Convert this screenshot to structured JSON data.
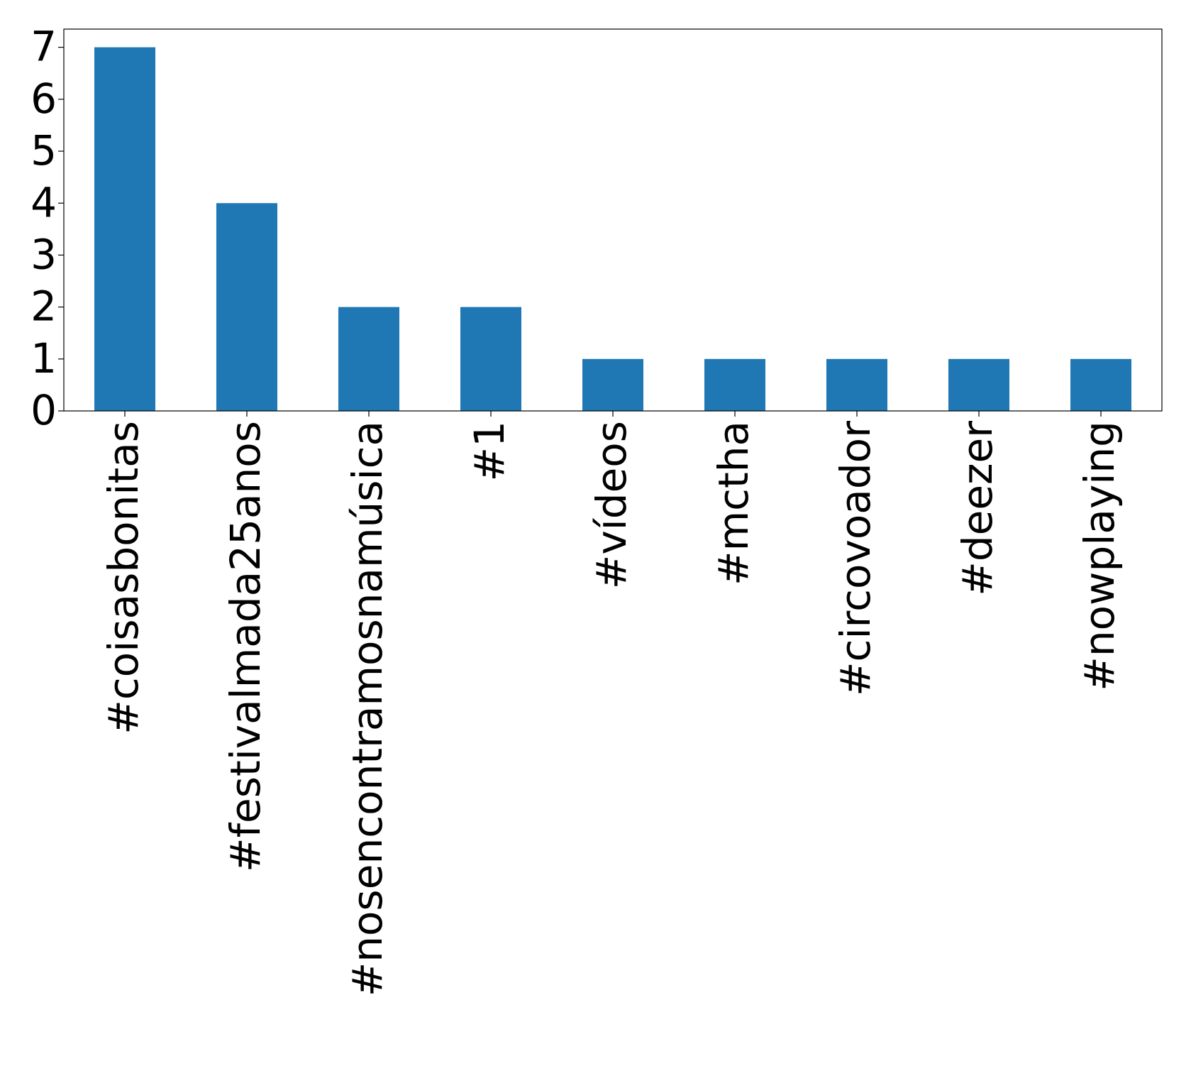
{
  "chart_data": {
    "type": "bar",
    "categories": [
      "#coisasbonitas",
      "#festivalmada25anos",
      "#nosencontramosnamúsica",
      "#1",
      "#vídeos",
      "#mctha",
      "#circovoador",
      "#deezer",
      "#nowplaying"
    ],
    "values": [
      7,
      4,
      2,
      2,
      1,
      1,
      1,
      1,
      1
    ],
    "color": "#1f77b4",
    "ylim": [
      0,
      7.35
    ],
    "yticks": [
      0,
      1,
      2,
      3,
      4,
      5,
      6,
      7
    ],
    "grid": false
  }
}
